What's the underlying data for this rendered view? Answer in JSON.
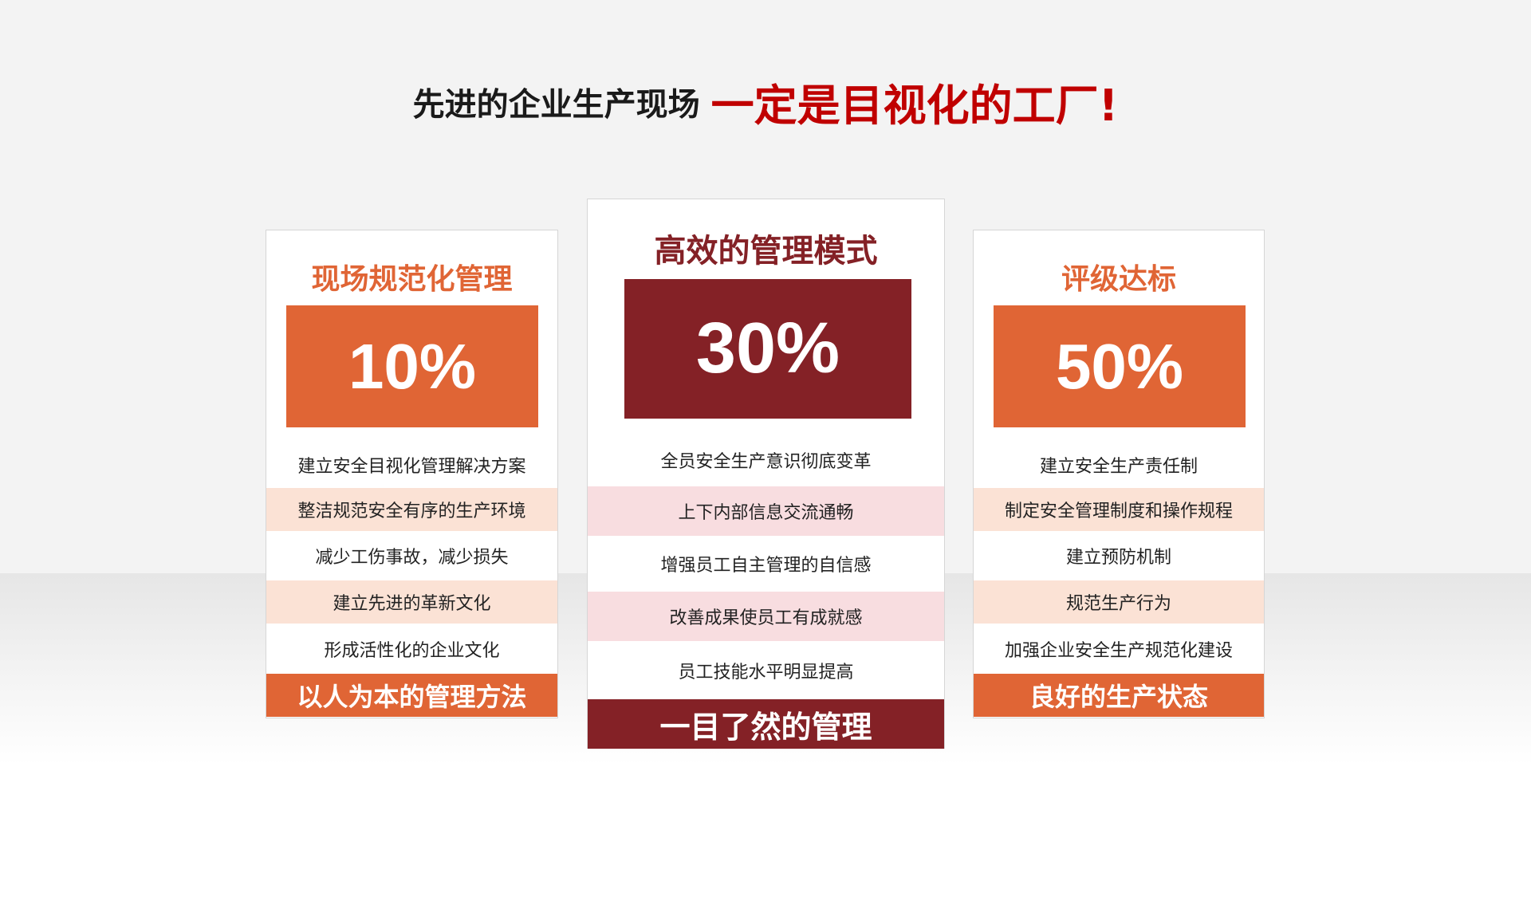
{
  "headline": {
    "black": "先进的企业生产现场",
    "red": "一定是目视化的工厂!"
  },
  "colors": {
    "orange": "#e06535",
    "dark_red": "#842126",
    "peach": "#fbe2d5",
    "pink": "#f8dde0",
    "headline_red": "#c00000"
  },
  "cards": [
    {
      "title": "现场规范化管理",
      "percent": "10%",
      "items": [
        "建立安全目视化管理解决方案",
        "整洁规范安全有序的生产环境",
        "减少工伤事故，减少损失",
        "建立先进的革新文化",
        "形成活性化的企业文化"
      ],
      "footer": "以人为本的管理方法"
    },
    {
      "title": "高效的管理模式",
      "percent": "30%",
      "items": [
        "全员安全生产意识彻底变革",
        "上下内部信息交流通畅",
        "增强员工自主管理的自信感",
        "改善成果使员工有成就感",
        "员工技能水平明显提高"
      ],
      "footer": "一目了然的管理"
    },
    {
      "title": "评级达标",
      "percent": "50%",
      "items": [
        "建立安全生产责任制",
        "制定安全管理制度和操作规程",
        "建立预防机制",
        "规范生产行为",
        "加强企业安全生产规范化建设"
      ],
      "footer": "良好的生产状态"
    }
  ]
}
